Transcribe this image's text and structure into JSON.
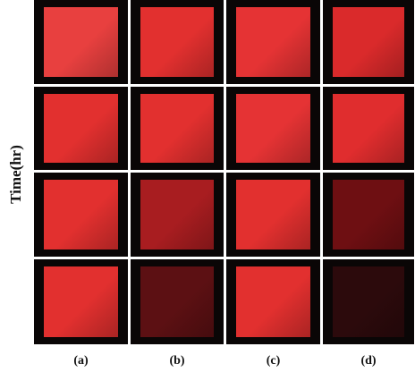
{
  "y_label": "Time(hr)",
  "columns": [
    "(a)",
    "(b)",
    "(c)",
    "(d)"
  ]
}
